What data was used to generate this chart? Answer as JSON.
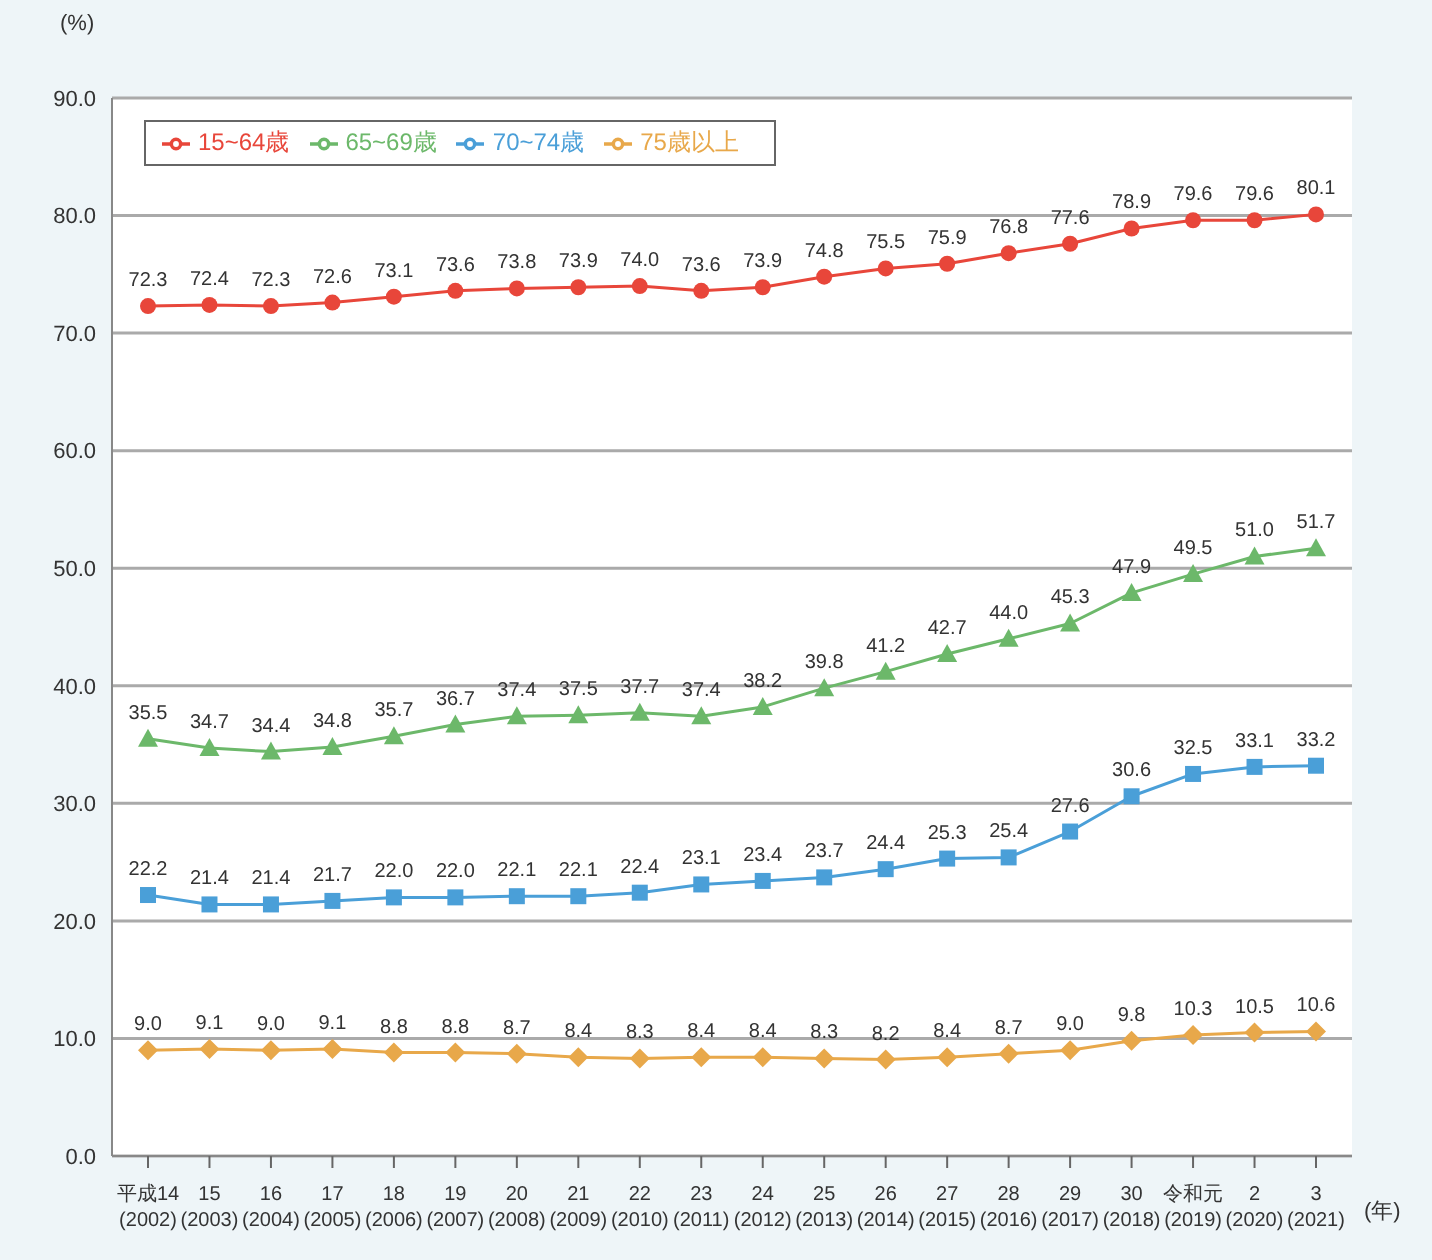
{
  "chart_data": {
    "type": "line",
    "ylabel": "(%)",
    "xlabel": "(年)",
    "categories": [
      "平成14\n(2002)",
      "15\n(2003)",
      "16\n(2004)",
      "17\n(2005)",
      "18\n(2006)",
      "19\n(2007)",
      "20\n(2008)",
      "21\n(2009)",
      "22\n(2010)",
      "23\n(2011)",
      "24\n(2012)",
      "25\n(2013)",
      "26\n(2014)",
      "27\n(2015)",
      "28\n(2016)",
      "29\n(2017)",
      "30\n(2018)",
      "令和元\n(2019)",
      "2\n(2020)",
      "3\n(2021)"
    ],
    "ylim": [
      0,
      90
    ],
    "yticks": [
      {
        "value": 0,
        "label": "0.0"
      },
      {
        "value": 10,
        "label": "10.0"
      },
      {
        "value": 20,
        "label": "20.0"
      },
      {
        "value": 30,
        "label": "30.0"
      },
      {
        "value": 40,
        "label": "40.0"
      },
      {
        "value": 50,
        "label": "50.0"
      },
      {
        "value": 60,
        "label": "60.0"
      },
      {
        "value": 70,
        "label": "70.0"
      },
      {
        "value": 80,
        "label": "80.0"
      },
      {
        "value": 90,
        "label": "90.0"
      }
    ],
    "grid": "y",
    "legend": "top left",
    "series": [
      {
        "name": "15~64歳",
        "color": "#e8463a",
        "marker": "circle",
        "values": [
          72.3,
          72.4,
          72.3,
          72.6,
          73.1,
          73.6,
          73.8,
          73.9,
          74.0,
          73.6,
          73.9,
          74.8,
          75.5,
          75.9,
          76.8,
          77.6,
          78.9,
          79.6,
          79.6,
          80.1
        ],
        "value_labels": [
          "72.3",
          "72.4",
          "72.3",
          "72.6",
          "73.1",
          "73.6",
          "73.8",
          "73.9",
          "74.0",
          "73.6",
          "73.9",
          "74.8",
          "75.5",
          "75.9",
          "76.8",
          "77.6",
          "78.9",
          "79.6",
          "79.6",
          "80.1"
        ]
      },
      {
        "name": "65~69歳",
        "color": "#6cb86a",
        "marker": "triangle",
        "values": [
          35.5,
          34.7,
          34.4,
          34.8,
          35.7,
          36.7,
          37.4,
          37.5,
          37.7,
          37.4,
          38.2,
          39.8,
          41.2,
          42.7,
          44.0,
          45.3,
          47.9,
          49.5,
          51.0,
          51.7
        ],
        "value_labels": [
          "35.5",
          "34.7",
          "34.4",
          "34.8",
          "35.7",
          "36.7",
          "37.4",
          "37.5",
          "37.7",
          "37.4",
          "38.2",
          "39.8",
          "41.2",
          "42.7",
          "44.0",
          "45.3",
          "47.9",
          "49.5",
          "51.0",
          "51.7"
        ]
      },
      {
        "name": "70~74歳",
        "color": "#4a9fd8",
        "marker": "square",
        "values": [
          22.2,
          21.4,
          21.4,
          21.7,
          22.0,
          22.0,
          22.1,
          22.1,
          22.4,
          23.1,
          23.4,
          23.7,
          24.4,
          25.3,
          25.4,
          27.6,
          30.6,
          32.5,
          33.1,
          33.2
        ],
        "value_labels": [
          "22.2",
          "21.4",
          "21.4",
          "21.7",
          "22.0",
          "22.0",
          "22.1",
          "22.1",
          "22.4",
          "23.1",
          "23.4",
          "23.7",
          "24.4",
          "25.3",
          "25.4",
          "27.6",
          "30.6",
          "32.5",
          "33.1",
          "33.2"
        ]
      },
      {
        "name": "75歳以上",
        "color": "#e8a84a",
        "marker": "diamond",
        "values": [
          9.0,
          9.1,
          9.0,
          9.1,
          8.8,
          8.8,
          8.7,
          8.4,
          8.3,
          8.4,
          8.4,
          8.3,
          8.2,
          8.4,
          8.7,
          9.0,
          9.8,
          10.3,
          10.5,
          10.6
        ],
        "value_labels": [
          "9.0",
          "9.1",
          "9.0",
          "9.1",
          "8.8",
          "8.8",
          "8.7",
          "8.4",
          "8.3",
          "8.4",
          "8.4",
          "8.3",
          "8.2",
          "8.4",
          "8.7",
          "9.0",
          "9.8",
          "10.3",
          "10.5",
          "10.6"
        ]
      }
    ]
  }
}
